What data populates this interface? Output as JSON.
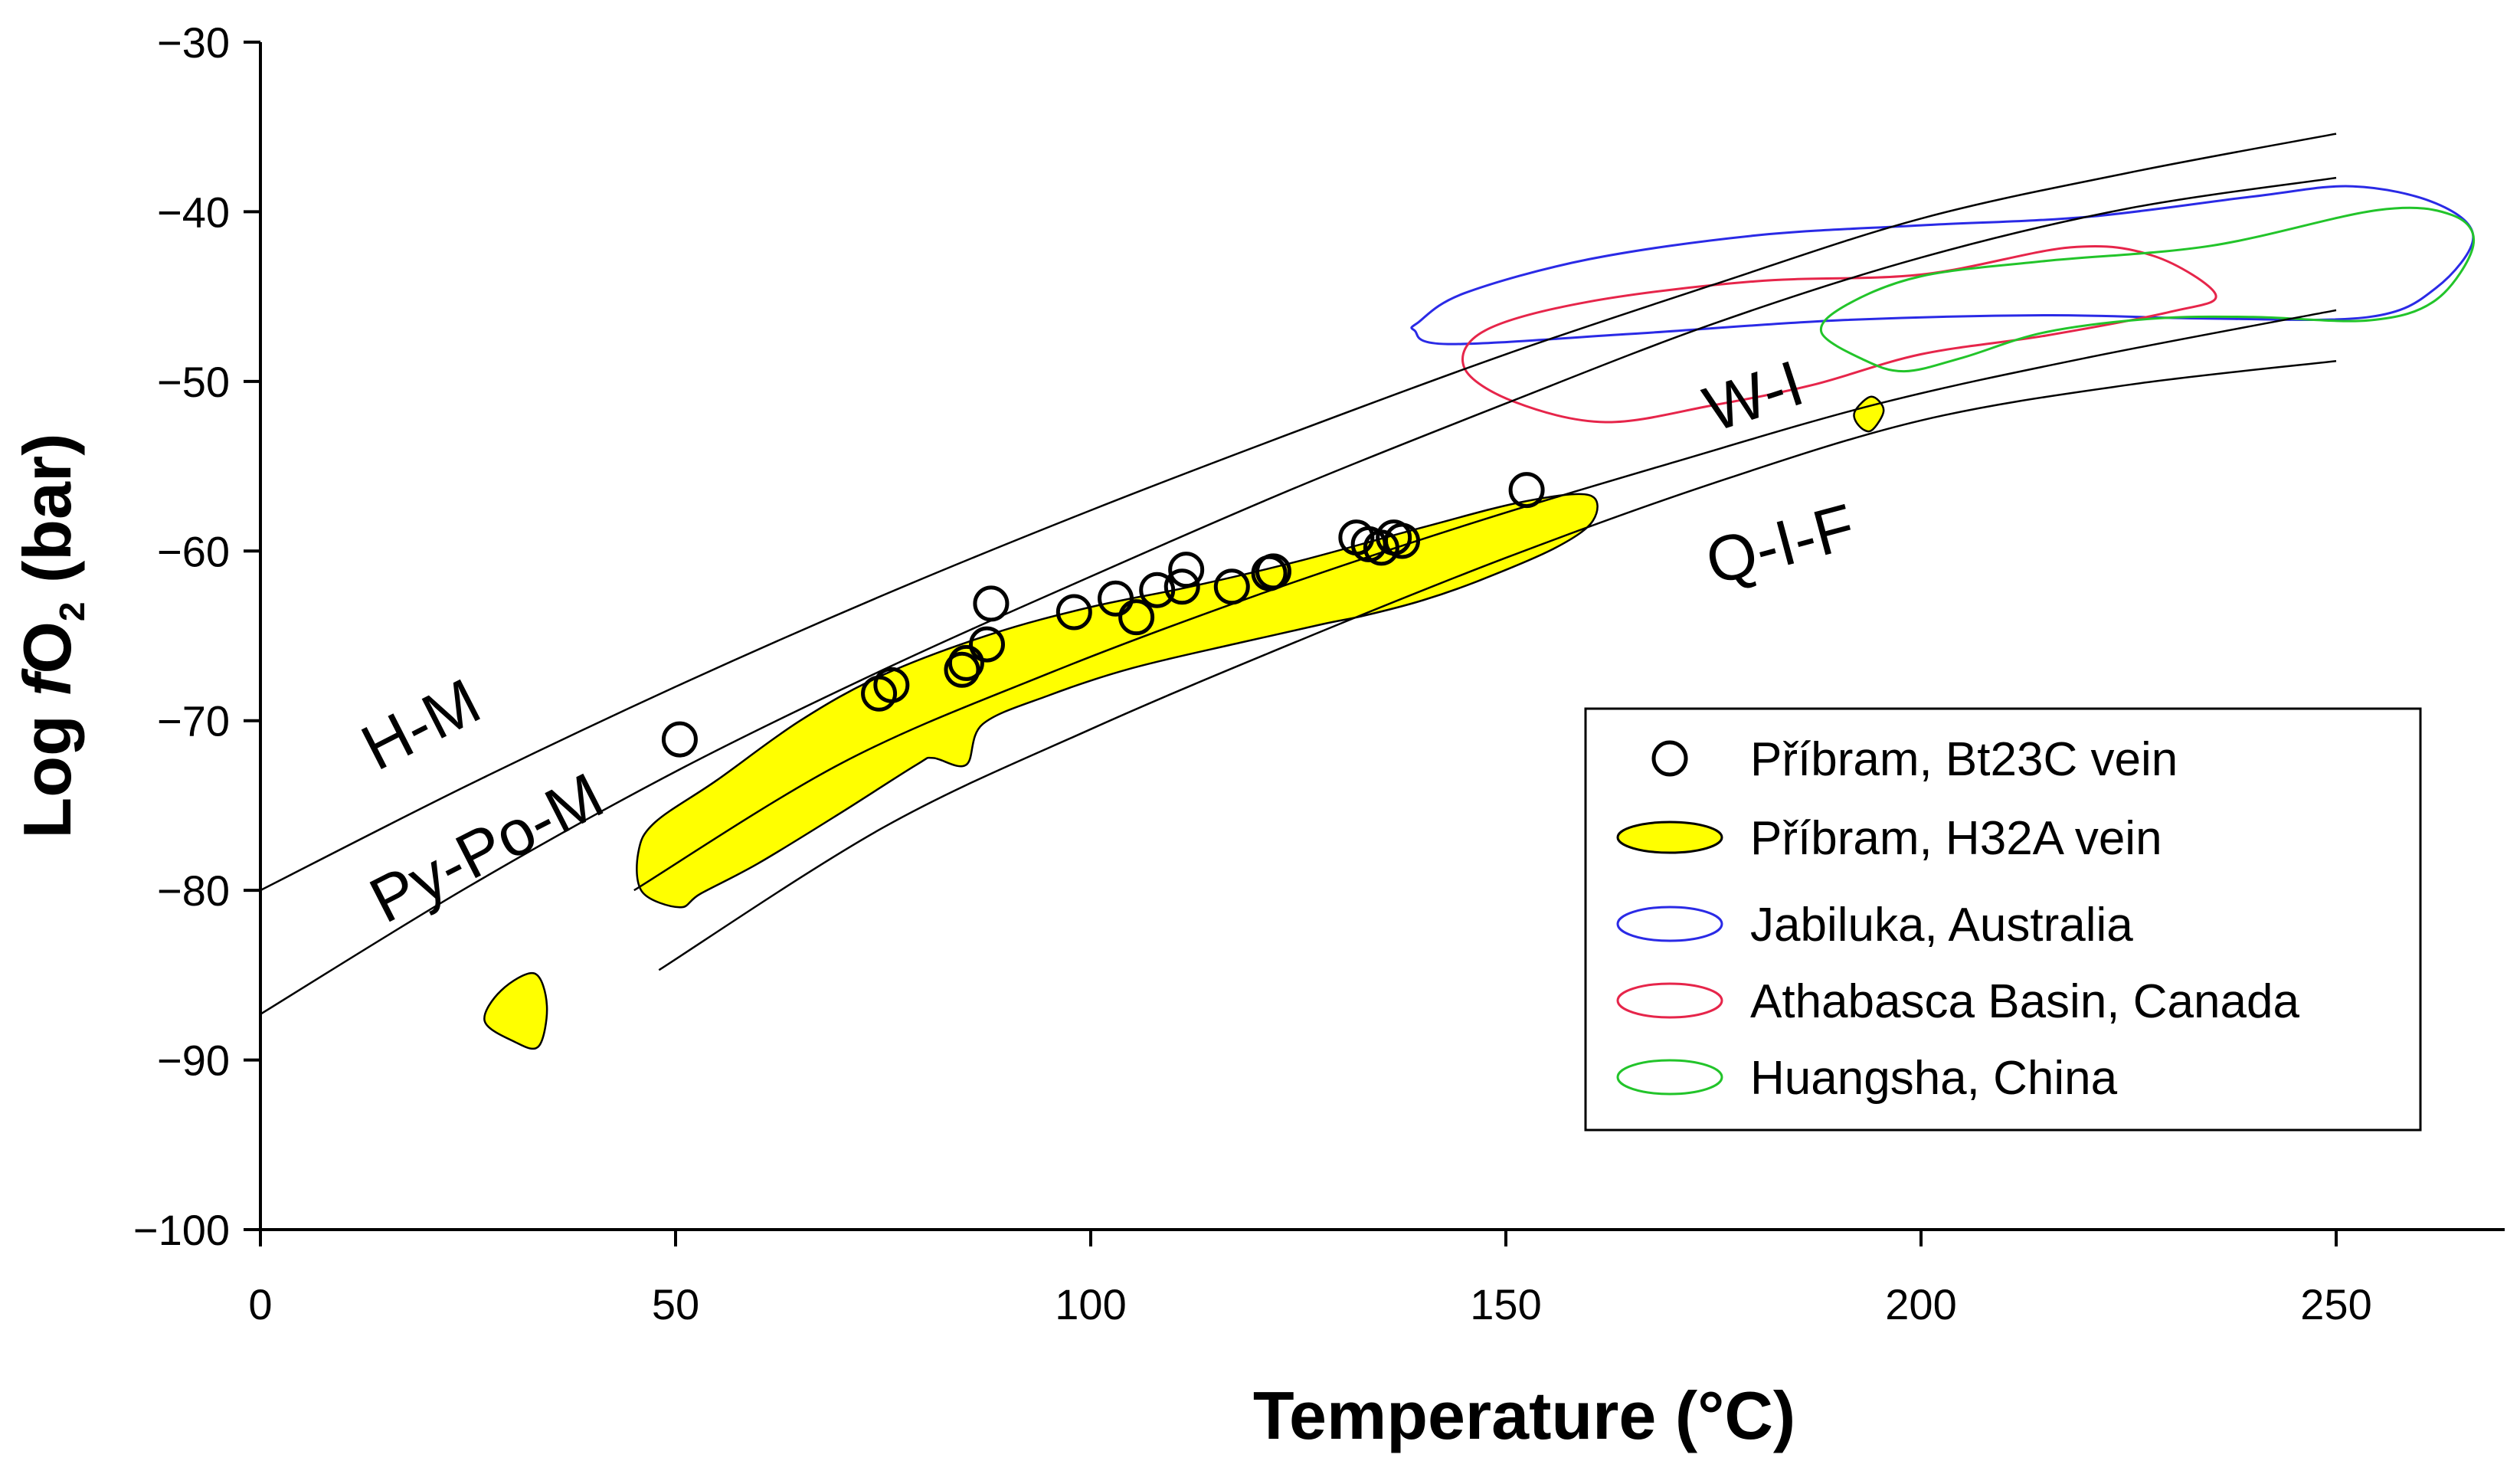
{
  "chart_data": {
    "type": "scatter",
    "title": "",
    "xlabel": "Temperature (°C)",
    "ylabel": {
      "prefix": "Log ",
      "italic": "f",
      "main": "O",
      "sub": "2",
      "suffix": " (bar)"
    },
    "xlim": [
      0,
      270
    ],
    "ylim": [
      -100,
      -30
    ],
    "xticks": [
      0,
      50,
      100,
      150,
      200,
      250
    ],
    "yticks": [
      -100,
      -90,
      -80,
      -70,
      -60,
      -50,
      -40,
      -30
    ],
    "xtick_labels": [
      "0",
      "50",
      "100",
      "150",
      "200",
      "250"
    ],
    "ytick_labels": [
      "−100",
      "−90",
      "−80",
      "−70",
      "−60",
      "−50",
      "−40",
      "−30"
    ],
    "grid": false,
    "legend_position": "bottom-right",
    "buffer_curves": [
      {
        "name": "H-M",
        "points": [
          [
            0,
            -80.0
          ],
          [
            25,
            -73.8
          ],
          [
            50,
            -68.0
          ],
          [
            75,
            -62.6
          ],
          [
            100,
            -57.6
          ],
          [
            125,
            -52.9
          ],
          [
            150,
            -48.4
          ],
          [
            175,
            -44.3
          ],
          [
            200,
            -40.4
          ],
          [
            225,
            -37.7
          ],
          [
            250,
            -35.4
          ]
        ]
      },
      {
        "name": "Py-Po-M",
        "points": [
          [
            0,
            -87.3
          ],
          [
            25,
            -79.8
          ],
          [
            50,
            -73.0
          ],
          [
            75,
            -67.0
          ],
          [
            100,
            -61.5
          ],
          [
            125,
            -56.2
          ],
          [
            150,
            -51.3
          ],
          [
            175,
            -46.6
          ],
          [
            200,
            -42.7
          ],
          [
            225,
            -39.8
          ],
          [
            250,
            -38.0
          ]
        ]
      },
      {
        "name": "W-I",
        "points": [
          [
            45,
            -80.0
          ],
          [
            70,
            -72.5
          ],
          [
            95,
            -67.2
          ],
          [
            120,
            -62.6
          ],
          [
            145,
            -58.5
          ],
          [
            170,
            -54.8
          ],
          [
            195,
            -51.3
          ],
          [
            220,
            -48.6
          ],
          [
            250,
            -45.8
          ]
        ]
      },
      {
        "name": "Q-I-F",
        "points": [
          [
            48,
            -84.7
          ],
          [
            75,
            -76.3
          ],
          [
            100,
            -70.5
          ],
          [
            125,
            -65.3
          ],
          [
            150,
            -60.4
          ],
          [
            175,
            -56.0
          ],
          [
            200,
            -52.3
          ],
          [
            225,
            -50.2
          ],
          [
            250,
            -48.8
          ]
        ]
      }
    ],
    "curve_labels": [
      {
        "text": "H-M",
        "x": 14,
        "y": -73,
        "angle": -27
      },
      {
        "text": "Py-Po-M",
        "x": 15,
        "y": -82,
        "angle": -27
      },
      {
        "text": "W-I",
        "x": 175,
        "y": -53,
        "angle": -18
      },
      {
        "text": "Q-I-F",
        "x": 175,
        "y": -62,
        "angle": -15
      }
    ],
    "series": [
      {
        "name": "Příbram, Bt23C vein",
        "style": "open-circle",
        "color": "#000000",
        "points": [
          [
            50.5,
            -71.1
          ],
          [
            74.5,
            -68.4
          ],
          [
            76,
            -67.9
          ],
          [
            84.5,
            -67
          ],
          [
            85,
            -66.6
          ],
          [
            87.5,
            -65.5
          ],
          [
            88,
            -63.1
          ],
          [
            98,
            -63.6
          ],
          [
            103,
            -62.8
          ],
          [
            105.5,
            -63.9
          ],
          [
            108,
            -62.3
          ],
          [
            111,
            -62.1
          ],
          [
            111.5,
            -61.1
          ],
          [
            117,
            -62.1
          ],
          [
            121.5,
            -61.3
          ],
          [
            122,
            -61.2
          ],
          [
            132,
            -59.2
          ],
          [
            133.5,
            -59.6
          ],
          [
            135,
            -59.8
          ],
          [
            136.5,
            -59.2
          ],
          [
            137.5,
            -59.4
          ],
          [
            152.5,
            -56.4
          ]
        ]
      },
      {
        "name": "Příbram, H32A vein",
        "style": "filled-region",
        "fill": "#ffff00",
        "stroke": "#000000",
        "regions": [
          [
            [
              47.5,
              -76
            ],
            [
              55,
              -73.5
            ],
            [
              65,
              -70
            ],
            [
              75,
              -67.3
            ],
            [
              88,
              -64.9
            ],
            [
              100,
              -63.3
            ],
            [
              112,
              -62.1
            ],
            [
              125,
              -60.6
            ],
            [
              140,
              -58.6
            ],
            [
              152,
              -57.1
            ],
            [
              160,
              -56.7
            ],
            [
              160.5,
              -58.2
            ],
            [
              156,
              -59.8
            ],
            [
              147,
              -61.7
            ],
            [
              140,
              -62.9
            ],
            [
              133,
              -63.8
            ],
            [
              128,
              -64.3
            ],
            [
              118,
              -65.4
            ],
            [
              105,
              -66.9
            ],
            [
              95,
              -68.5
            ],
            [
              87,
              -70.2
            ],
            [
              85,
              -72.6
            ],
            [
              81,
              -72.2
            ],
            [
              79,
              -72.6
            ],
            [
              70,
              -75.4
            ],
            [
              60,
              -78.4
            ],
            [
              53,
              -80.2
            ],
            [
              50.5,
              -81
            ],
            [
              46,
              -80.1
            ],
            [
              45.5,
              -77.8
            ]
          ],
          [
            [
              27,
              -87.7
            ],
            [
              29,
              -85.9
            ],
            [
              33,
              -84.9
            ],
            [
              34.5,
              -86.8
            ],
            [
              33.5,
              -89.2
            ],
            [
              30.5,
              -88.9
            ]
          ],
          [
            [
              192,
              -51.8
            ],
            [
              194,
              -50.9
            ],
            [
              195.5,
              -51.7
            ],
            [
              194,
              -52.9
            ],
            [
              192.5,
              -52.6
            ]
          ]
        ]
      },
      {
        "name": "Jabiluka, Australia",
        "style": "outline-region",
        "color": "#2a2ae6",
        "regions": [
          [
            [
              139.5,
              -46.5
            ],
            [
              145,
              -44.8
            ],
            [
              160,
              -42.8
            ],
            [
              180,
              -41.4
            ],
            [
              200,
              -40.8
            ],
            [
              220,
              -40.3
            ],
            [
              240,
              -39.1
            ],
            [
              252,
              -38.5
            ],
            [
              262,
              -39.5
            ],
            [
              266.5,
              -41.5
            ],
            [
              262,
              -44.5
            ],
            [
              254,
              -46.2
            ],
            [
              235,
              -46.3
            ],
            [
              215,
              -46.1
            ],
            [
              190,
              -46.4
            ],
            [
              165,
              -47.2
            ],
            [
              143,
              -47.8
            ],
            [
              139,
              -47
            ]
          ]
        ]
      },
      {
        "name": "Athabasca Basin, Canada",
        "style": "outline-region",
        "color": "#e6254a",
        "regions": [
          [
            [
              147.5,
              -47
            ],
            [
              160,
              -45.3
            ],
            [
              180,
              -44.1
            ],
            [
              200,
              -43.7
            ],
            [
              218,
              -42.1
            ],
            [
              228,
              -42.6
            ],
            [
              235.5,
              -44.9
            ],
            [
              230,
              -45.9
            ],
            [
              215,
              -47.3
            ],
            [
              200,
              -48.4
            ],
            [
              187,
              -50.2
            ],
            [
              175,
              -51.4
            ],
            [
              162,
              -52.4
            ],
            [
              151,
              -51.2
            ],
            [
              145,
              -49.2
            ]
          ]
        ]
      },
      {
        "name": "Huangsha, China",
        "style": "outline-region",
        "color": "#22c42a",
        "regions": [
          [
            [
              191,
              -45.5
            ],
            [
              200,
              -43.8
            ],
            [
              215,
              -42.9
            ],
            [
              235,
              -42
            ],
            [
              255,
              -39.9
            ],
            [
              264,
              -40.2
            ],
            [
              266.5,
              -42
            ],
            [
              262,
              -45.2
            ],
            [
              254,
              -46.4
            ],
            [
              240,
              -46.2
            ],
            [
              228,
              -46.3
            ],
            [
              215,
              -47.1
            ],
            [
              205,
              -48.6
            ],
            [
              198,
              -49.4
            ],
            [
              193,
              -48.7
            ],
            [
              188,
              -47.1
            ]
          ]
        ]
      }
    ]
  }
}
